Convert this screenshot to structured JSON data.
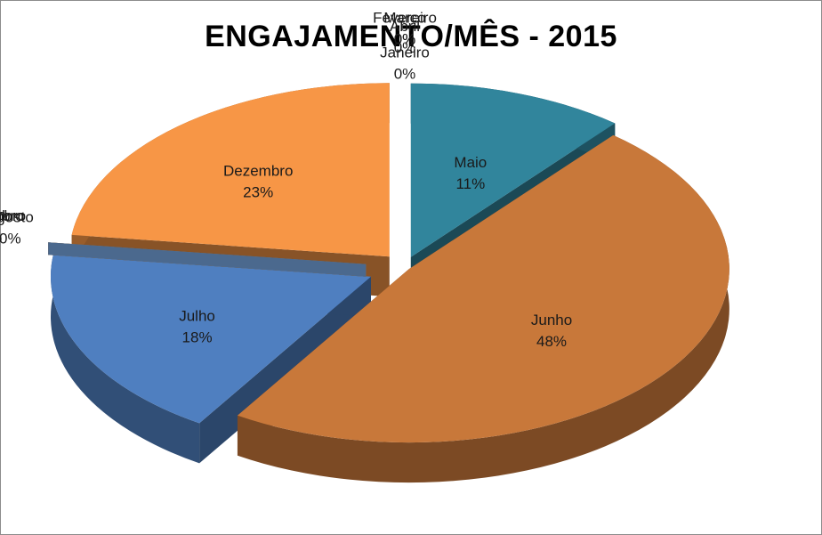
{
  "chart_data": {
    "type": "pie",
    "title": "ENGAJAMENTO/MÊS - 2015",
    "three_d": true,
    "exploded": true,
    "data_labels": "category and percent",
    "slices": [
      {
        "label": "Janeiro",
        "value": 0,
        "display": "0%",
        "color": "#4f81bd"
      },
      {
        "label": "Fevereiro",
        "value": 0,
        "display": "0%",
        "color": "#c0504d"
      },
      {
        "label": "Março",
        "value": 0,
        "display": "0%",
        "color": "#9bbb59"
      },
      {
        "label": "Abril",
        "value": 0,
        "display": "0%",
        "color": "#8064a2"
      },
      {
        "label": "Maio",
        "value": 11,
        "display": "11%",
        "color": "#31859c"
      },
      {
        "label": "Junho",
        "value": 48,
        "display": "48%",
        "color": "#c8783a"
      },
      {
        "label": "Julho",
        "value": 18,
        "display": "18%",
        "color": "#4f7fc0"
      },
      {
        "label": "Agosto",
        "value": 0,
        "display": "0%",
        "color": "#6e1f1f"
      },
      {
        "label": "Setembro",
        "value": 0,
        "display": "0%",
        "color": "#4bacc6"
      },
      {
        "label": "Outubro",
        "value": 0,
        "display": "0%",
        "color": "#f79646"
      },
      {
        "label": "Novembro",
        "value": 0,
        "display": "0%",
        "color": "#4f81bd"
      },
      {
        "label": "Dezembro",
        "value": 23,
        "display": "23%",
        "color": "#f79646"
      }
    ]
  }
}
